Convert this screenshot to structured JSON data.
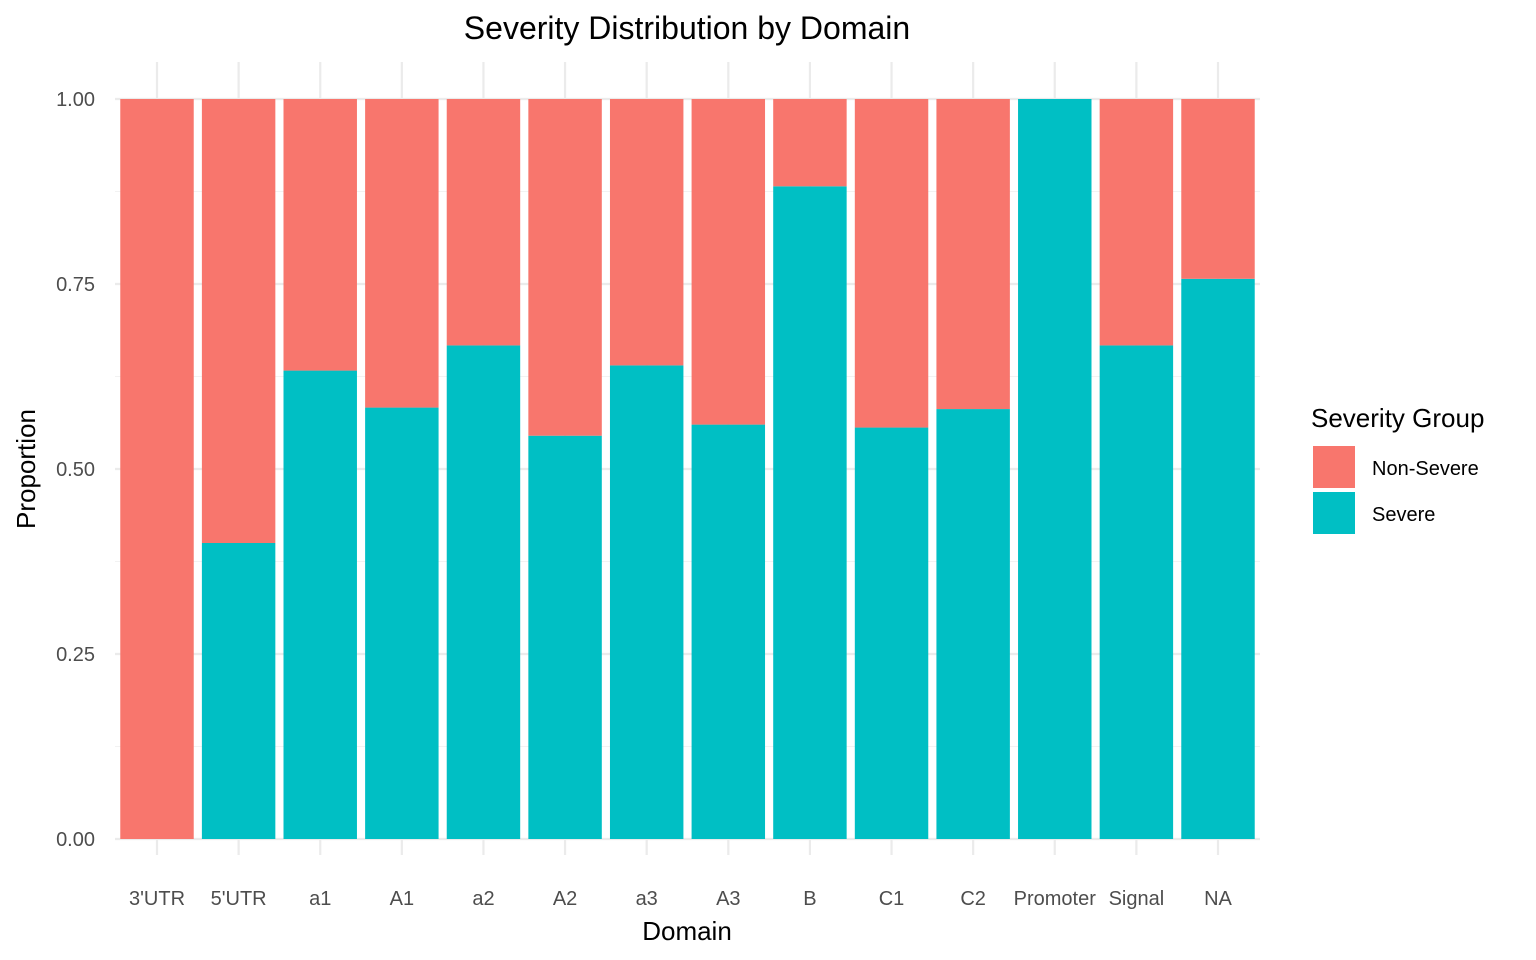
{
  "chart_data": {
    "type": "bar",
    "stacked": true,
    "title": "Severity Distribution by Domain",
    "xlabel": "Domain",
    "ylabel": "Proportion",
    "ylim": [
      0,
      1
    ],
    "yticks": [
      "0.00",
      "0.25",
      "0.50",
      "0.75",
      "1.00"
    ],
    "grid": true,
    "legend_position": "right",
    "legend_title": "Severity Group",
    "categories": [
      "3'UTR",
      "5'UTR",
      "a1",
      "A1",
      "a2",
      "A2",
      "a3",
      "A3",
      "B",
      "C1",
      "C2",
      "Promoter",
      "Signal",
      "NA"
    ],
    "series": [
      {
        "name": "Non-Severe",
        "color": "#F8766D",
        "values": [
          1.0,
          0.6,
          0.367,
          0.417,
          0.333,
          0.455,
          0.36,
          0.44,
          0.118,
          0.444,
          0.419,
          0.0,
          0.333,
          0.243
        ]
      },
      {
        "name": "Severe",
        "color": "#00BFC4",
        "values": [
          0.0,
          0.4,
          0.633,
          0.583,
          0.667,
          0.545,
          0.64,
          0.56,
          0.882,
          0.556,
          0.581,
          1.0,
          0.667,
          0.757
        ]
      }
    ]
  }
}
